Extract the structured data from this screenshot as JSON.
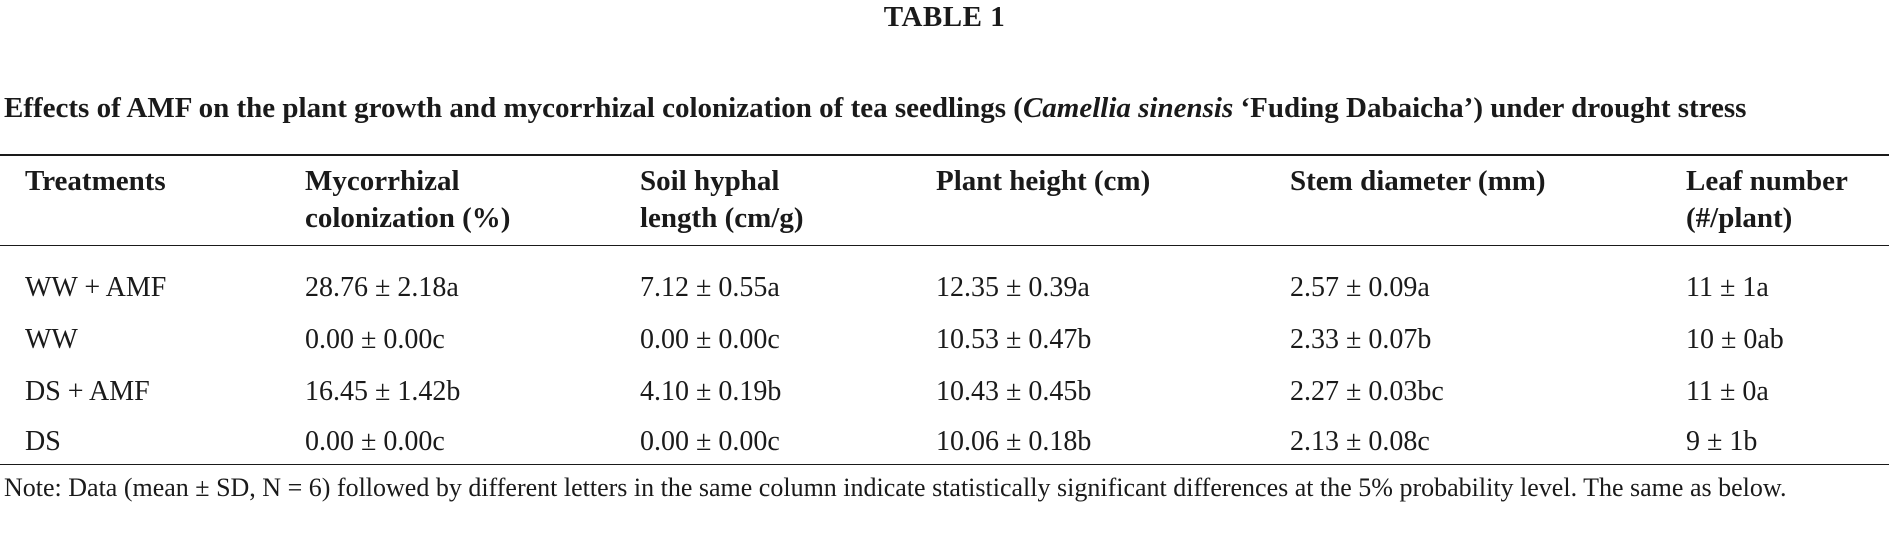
{
  "table_label": "TABLE 1",
  "caption": {
    "before_italic": "Effects of AMF on the plant growth and mycorrhizal colonization of tea seedlings (",
    "italic": "Camellia sinensis",
    "after_italic": " ‘Fuding Dabaicha’) under drought stress"
  },
  "columns": [
    {
      "line1": "Treatments",
      "line2": ""
    },
    {
      "line1": "Mycorrhizal",
      "line2": "colonization (%)"
    },
    {
      "line1": "Soil hyphal",
      "line2": "length (cm/g)"
    },
    {
      "line1": "Plant height (cm)",
      "line2": ""
    },
    {
      "line1": "Stem diameter (mm)",
      "line2": ""
    },
    {
      "line1": "Leaf number",
      "line2": "(#/plant)"
    }
  ],
  "rows": [
    [
      "WW + AMF",
      "28.76 ± 2.18a",
      "7.12 ± 0.55a",
      "12.35 ± 0.39a",
      "2.57 ± 0.09a",
      "11 ± 1a"
    ],
    [
      "WW",
      "0.00 ± 0.00c",
      "0.00 ± 0.00c",
      "10.53 ± 0.47b",
      "2.33 ± 0.07b",
      "10 ± 0ab"
    ],
    [
      "DS + AMF",
      "16.45 ± 1.42b",
      "4.10 ± 0.19b",
      "10.43 ± 0.45b",
      "2.27 ± 0.03bc",
      "11 ± 0a"
    ],
    [
      "DS",
      "0.00 ± 0.00c",
      "0.00 ± 0.00c",
      "10.06 ± 0.18b",
      "2.13 ± 0.08c",
      "9 ± 1b"
    ]
  ],
  "note": "Note: Data (mean ± SD, N = 6) followed by different letters in the same column indicate statistically significant differences at the 5% probability level. The same as below."
}
